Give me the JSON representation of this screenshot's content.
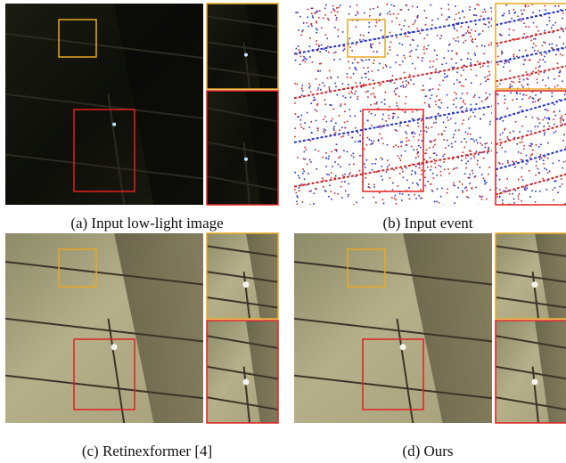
{
  "panels": [
    {
      "caption": "(a) Input low-light image"
    },
    {
      "caption": "(b) Input event"
    },
    {
      "caption": "(c) Retinexformer [4]"
    },
    {
      "caption": "(d) Ours"
    }
  ]
}
